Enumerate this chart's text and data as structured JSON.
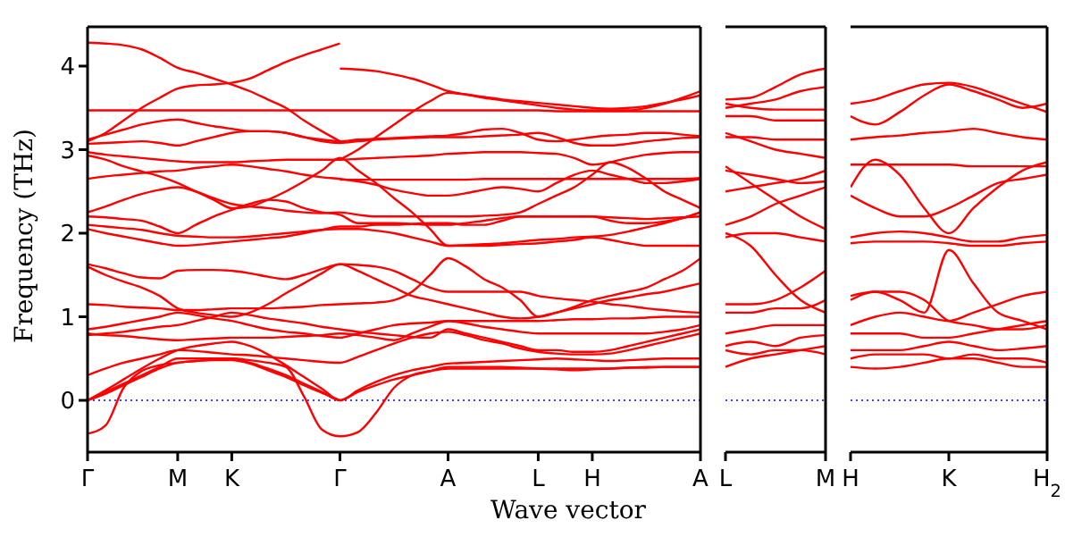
{
  "chart_data": [
    {
      "type": "line",
      "xlabel": "Wave vector",
      "ylabel": "Frequency (THz)",
      "categories": [
        "Γ",
        null,
        null,
        null,
        null,
        "M",
        null,
        null,
        "K",
        null,
        null,
        null,
        null,
        null,
        "Γ",
        null,
        null,
        null,
        null,
        null,
        "A",
        null,
        null,
        null,
        null,
        "L",
        null,
        null,
        "H",
        null,
        null,
        null,
        null,
        null,
        "A"
      ],
      "ylim": [
        -0.62,
        4.47
      ],
      "yticks": [
        0,
        1,
        2,
        3,
        4
      ],
      "ref_lines": [
        {
          "axis": "y",
          "value": 0,
          "color": "#0000ff",
          "line_style": "dotted"
        }
      ],
      "series": [
        {
          "color": "#ff0000",
          "values": [
            4.28,
            4.27,
            4.25,
            4.2,
            4.1,
            3.98,
            3.92,
            3.85,
            3.78,
            3.7,
            3.6,
            3.5,
            3.35,
            3.22,
            3.1,
            null,
            null,
            null,
            null,
            null,
            null,
            null,
            null,
            null,
            null,
            null,
            null,
            null,
            null,
            null,
            null,
            null,
            null,
            null,
            null
          ]
        },
        {
          "color": "#ff0000",
          "values": [
            3.1,
            3.2,
            3.35,
            3.5,
            3.62,
            3.73,
            3.77,
            3.78,
            3.8,
            3.85,
            3.95,
            4.05,
            4.13,
            4.2,
            4.27,
            null,
            null,
            null,
            null,
            null,
            null,
            null,
            null,
            null,
            null,
            null,
            null,
            null,
            null,
            null,
            null,
            null,
            null,
            null,
            null
          ]
        },
        {
          "color": "#ff0000",
          "values": [
            3.47,
            3.47,
            3.47,
            3.47,
            3.47,
            3.47,
            3.47,
            3.47,
            3.47,
            3.47,
            3.47,
            3.47,
            3.47,
            3.47,
            3.47,
            3.47,
            3.47,
            3.47,
            3.47,
            3.47,
            3.47,
            3.47,
            3.47,
            3.47,
            3.47,
            3.47,
            3.46,
            3.46,
            3.46,
            3.46,
            3.46,
            3.46,
            3.46,
            3.46,
            3.46
          ]
        },
        {
          "color": "#ff0000",
          "values": [
            3.12,
            3.18,
            3.24,
            3.3,
            3.34,
            3.36,
            3.32,
            3.28,
            3.25,
            3.22,
            3.22,
            3.2,
            3.15,
            3.12,
            3.1,
            3.12,
            3.13,
            3.14,
            3.15,
            3.16,
            3.17,
            3.2,
            3.24,
            3.25,
            3.2,
            3.12,
            3.1,
            3.12,
            3.15,
            3.17,
            3.18,
            3.2,
            3.2,
            3.18,
            3.16
          ]
        },
        {
          "color": "#ff0000",
          "values": [
            3.07,
            3.08,
            3.09,
            3.1,
            3.08,
            3.05,
            3.1,
            3.15,
            3.2,
            3.22,
            3.22,
            3.2,
            3.15,
            3.1,
            3.08,
            3.1,
            3.12,
            3.13,
            3.14,
            3.15,
            3.15,
            3.15,
            3.16,
            3.17,
            3.18,
            3.2,
            3.15,
            3.08,
            3.05,
            3.05,
            3.07,
            3.1,
            3.12,
            3.14,
            3.15
          ]
        },
        {
          "color": "#ff0000",
          "values": [
            2.97,
            2.94,
            2.92,
            2.9,
            2.88,
            2.86,
            2.85,
            2.85,
            2.85,
            2.86,
            2.87,
            2.88,
            2.88,
            2.88,
            2.88,
            2.89,
            2.9,
            2.91,
            2.92,
            2.93,
            2.95,
            2.96,
            2.97,
            2.97,
            2.97,
            2.96,
            2.95,
            2.9,
            2.82,
            2.85,
            2.9,
            2.94,
            2.96,
            2.97,
            2.97
          ]
        },
        {
          "color": "#ff0000",
          "values": [
            2.93,
            2.88,
            2.8,
            2.74,
            2.68,
            2.6,
            2.5,
            2.4,
            2.3,
            2.32,
            2.4,
            2.5,
            2.62,
            2.75,
            2.9,
            2.75,
            2.6,
            2.42,
            2.25,
            2.05,
            1.85,
            1.86,
            1.87,
            1.88,
            1.9,
            1.92,
            1.93,
            1.95,
            1.96,
            1.98,
            2.02,
            2.07,
            2.12,
            2.18,
            2.25
          ]
        },
        {
          "color": "#ff0000",
          "values": [
            2.65,
            2.68,
            2.7,
            2.72,
            2.74,
            2.75,
            2.78,
            2.8,
            2.82,
            2.8,
            2.77,
            2.74,
            2.7,
            2.67,
            2.65,
            2.62,
            2.58,
            2.52,
            2.48,
            2.45,
            2.45,
            2.48,
            2.52,
            2.55,
            2.53,
            2.5,
            2.6,
            2.7,
            2.75,
            2.7,
            2.65,
            2.6,
            2.6,
            2.62,
            2.65
          ]
        },
        {
          "color": "#ff0000",
          "values": [
            2.25,
            2.32,
            2.4,
            2.47,
            2.52,
            2.55,
            2.5,
            2.42,
            2.35,
            2.32,
            2.3,
            2.27,
            2.25,
            2.24,
            2.25,
            2.22,
            2.2,
            2.2,
            2.2,
            2.2,
            2.2,
            2.2,
            2.21,
            2.22,
            2.25,
            2.35,
            2.45,
            2.55,
            2.7,
            2.85,
            2.78,
            2.65,
            2.5,
            2.4,
            2.3
          ]
        },
        {
          "color": "#ff0000",
          "values": [
            2.2,
            2.19,
            2.17,
            2.15,
            2.08,
            2.0,
            2.1,
            2.2,
            2.28,
            2.35,
            2.4,
            2.38,
            2.3,
            2.25,
            2.22,
            2.12,
            2.12,
            2.12,
            2.11,
            2.1,
            2.1,
            2.12,
            2.15,
            2.18,
            2.2,
            2.2,
            2.2,
            2.2,
            2.2,
            2.19,
            2.18,
            2.17,
            2.18,
            2.19,
            2.2
          ]
        },
        {
          "color": "#ff0000",
          "values": [
            2.1,
            2.08,
            2.06,
            2.04,
            2.0,
            1.97,
            1.96,
            1.95,
            1.95,
            1.96,
            1.98,
            2.0,
            2.02,
            2.04,
            2.05,
            2.05,
            2.03,
            2.0,
            1.95,
            1.9,
            1.85,
            1.85,
            1.85,
            1.86,
            1.87,
            1.88,
            1.9,
            1.92,
            1.95,
            1.92,
            1.88,
            1.85,
            1.85,
            1.85,
            1.85
          ]
        },
        {
          "color": "#ff0000",
          "values": [
            2.05,
            2.0,
            1.96,
            1.92,
            1.88,
            1.85,
            1.86,
            1.88,
            1.9,
            1.92,
            1.94,
            1.96,
            2.0,
            2.04,
            2.08,
            2.08,
            2.1,
            2.1,
            2.11,
            2.12,
            2.12,
            2.1,
            2.1,
            2.15,
            2.2,
            2.2,
            2.2,
            2.2,
            2.2,
            2.15,
            2.12,
            2.12,
            2.14,
            2.18,
            2.25
          ]
        },
        {
          "color": "#ff0000",
          "values": [
            1.63,
            1.58,
            1.52,
            1.47,
            1.46,
            1.55,
            1.56,
            1.56,
            1.55,
            1.52,
            1.48,
            1.45,
            1.5,
            1.57,
            1.63,
            1.62,
            1.6,
            1.55,
            1.45,
            1.35,
            1.3,
            1.3,
            1.3,
            1.3,
            1.3,
            1.25,
            1.22,
            1.2,
            1.18,
            1.15,
            1.13,
            1.1,
            1.08,
            1.06,
            1.05
          ]
        },
        {
          "color": "#ff0000",
          "values": [
            1.6,
            1.5,
            1.42,
            1.35,
            1.25,
            1.1,
            1.05,
            1.02,
            1.0,
            1.05,
            1.15,
            1.28,
            1.4,
            1.52,
            1.63,
            1.55,
            1.45,
            1.35,
            1.25,
            1.2,
            1.15,
            1.1,
            1.05,
            1.0,
            0.98,
            1.0,
            1.05,
            1.1,
            1.15,
            1.2,
            1.23,
            1.27,
            1.3,
            1.35,
            1.4
          ]
        },
        {
          "color": "#ff0000",
          "values": [
            1.15,
            1.14,
            1.12,
            1.11,
            1.1,
            1.08,
            1.08,
            1.09,
            1.1,
            1.1,
            1.1,
            1.11,
            1.12,
            1.14,
            1.15,
            1.16,
            1.17,
            1.2,
            1.3,
            1.5,
            1.7,
            1.6,
            1.45,
            1.35,
            1.2,
            1.0,
            1.05,
            1.12,
            1.2,
            1.25,
            1.3,
            1.35,
            1.45,
            1.55,
            1.7
          ]
        },
        {
          "color": "#ff0000",
          "values": [
            0.85,
            0.88,
            0.92,
            0.96,
            1.0,
            1.05,
            1.02,
            0.98,
            0.95,
            0.9,
            0.85,
            0.82,
            0.8,
            0.77,
            0.75,
            0.8,
            0.85,
            0.9,
            0.92,
            0.93,
            0.95,
            0.95,
            0.95,
            0.95,
            0.95,
            0.95,
            0.96,
            0.97,
            0.97,
            0.98,
            0.98,
            0.99,
            1.0,
            1.0,
            1.0
          ]
        },
        {
          "color": "#ff0000",
          "values": [
            0.8,
            0.78,
            0.77,
            0.75,
            0.73,
            0.72,
            0.73,
            0.74,
            0.75,
            0.75,
            0.75,
            0.76,
            0.77,
            0.78,
            0.8,
            0.78,
            0.75,
            0.72,
            0.8,
            0.88,
            0.95,
            0.92,
            0.88,
            0.85,
            0.82,
            0.8,
            0.8,
            0.8,
            0.8,
            0.8,
            0.8,
            0.8,
            0.82,
            0.85,
            0.9
          ]
        },
        {
          "color": "#ff0000",
          "values": [
            0.78,
            0.8,
            0.82,
            0.85,
            0.88,
            0.9,
            0.95,
            1.0,
            1.05,
            1.02,
            0.98,
            0.95,
            0.92,
            0.88,
            0.85,
            0.82,
            0.8,
            0.78,
            0.76,
            0.75,
            0.85,
            0.8,
            0.75,
            0.7,
            0.65,
            0.6,
            0.6,
            0.58,
            0.58,
            0.6,
            0.65,
            0.7,
            0.75,
            0.8,
            0.85
          ]
        },
        {
          "color": "#ff0000",
          "values": [
            0.3,
            0.38,
            0.45,
            0.5,
            0.55,
            0.6,
            0.59,
            0.57,
            0.55,
            0.54,
            0.52,
            0.5,
            0.48,
            0.46,
            0.45,
            0.52,
            0.6,
            0.68,
            0.75,
            0.8,
            0.82,
            0.78,
            0.72,
            0.68,
            0.62,
            0.58,
            0.56,
            0.55,
            0.55,
            0.56,
            0.6,
            0.65,
            0.7,
            0.75,
            0.8
          ]
        },
        {
          "color": "#ff0000",
          "values": [
            0,
            0.12,
            0.25,
            0.38,
            0.5,
            0.6,
            0.65,
            0.68,
            0.7,
            0.65,
            0.55,
            0.42,
            0.28,
            0.14,
            0,
            0.12,
            0.22,
            0.3,
            0.36,
            0.4,
            0.44,
            0.45,
            0.46,
            0.47,
            0.48,
            0.49,
            0.5,
            0.49,
            0.48,
            0.47,
            0.48,
            0.49,
            0.5,
            0.5,
            0.5
          ]
        },
        {
          "color": "#ff0000",
          "values": [
            0,
            0.1,
            0.2,
            0.3,
            0.4,
            0.5,
            0.5,
            0.5,
            0.5,
            0.45,
            0.38,
            0.3,
            0.2,
            0.1,
            0,
            0.1,
            0.18,
            0.25,
            0.3,
            0.35,
            0.4,
            0.4,
            0.4,
            0.4,
            0.39,
            0.38,
            0.37,
            0.36,
            0.37,
            0.38,
            0.39,
            0.4,
            0.4,
            0.4,
            0.4
          ]
        },
        {
          "color": "#ff0000",
          "values": [
            0,
            0.08,
            0.18,
            0.28,
            0.38,
            0.45,
            0.47,
            0.48,
            0.48,
            0.44,
            0.36,
            0.28,
            0.18,
            0.09,
            0,
            null,
            null,
            null,
            null,
            null,
            null,
            null,
            null,
            null,
            null,
            null,
            null,
            null,
            null,
            null,
            null,
            null,
            null,
            null,
            null
          ]
        },
        {
          "color": "#ff0000",
          "values": [
            -0.4,
            -0.3,
            0.15,
            0.35,
            0.42,
            0.45,
            0.47,
            0.49,
            0.5,
            0.48,
            0.45,
            0.4,
            0.05,
            -0.35,
            -0.43,
            -0.38,
            -0.15,
            0.15,
            0.3,
            0.35,
            0.38,
            0.38,
            0.38,
            0.38,
            0.38,
            0.38,
            0.38,
            0.38,
            0.38,
            0.38,
            0.39,
            0.39,
            0.4,
            0.4,
            0.4
          ]
        },
        {
          "color": "#ff0000",
          "values": [
            null,
            null,
            null,
            null,
            null,
            null,
            null,
            null,
            null,
            null,
            null,
            null,
            null,
            null,
            3.97,
            3.96,
            3.94,
            3.9,
            3.85,
            3.78,
            3.7,
            3.66,
            3.62,
            3.59,
            3.56,
            3.53,
            3.5,
            3.48,
            3.47,
            3.47,
            3.47,
            3.5,
            3.55,
            3.62,
            3.7
          ]
        },
        {
          "color": "#ff0000",
          "values": [
            null,
            null,
            null,
            null,
            null,
            null,
            null,
            null,
            null,
            null,
            null,
            null,
            null,
            null,
            2.88,
            3.0,
            3.15,
            3.3,
            3.45,
            3.58,
            3.68,
            3.66,
            3.63,
            3.6,
            3.58,
            3.56,
            3.54,
            3.52,
            3.5,
            3.49,
            3.5,
            3.52,
            3.56,
            3.6,
            3.65
          ]
        },
        {
          "color": "#ff0000",
          "values": [
            null,
            null,
            null,
            null,
            null,
            null,
            null,
            null,
            null,
            null,
            null,
            null,
            null,
            null,
            2.64,
            2.64,
            2.64,
            2.64,
            2.64,
            2.64,
            2.64,
            2.64,
            2.65,
            2.65,
            2.65,
            2.65,
            2.65,
            2.65,
            2.65,
            2.65,
            2.65,
            2.65,
            2.65,
            2.65,
            2.66
          ]
        }
      ]
    },
    {
      "type": "line",
      "categories": [
        "L",
        null,
        null,
        null,
        "M"
      ],
      "ylim": [
        -0.62,
        4.47
      ],
      "yticks": [
        0,
        1,
        2,
        3,
        4
      ],
      "tick_labels": "x",
      "ref_lines": [
        {
          "axis": "y",
          "value": 0,
          "color": "#0000ff",
          "line_style": "dotted"
        }
      ],
      "series": [
        {
          "color": "#ff0000",
          "values": [
            3.6,
            3.62,
            3.75,
            3.9,
            3.97
          ]
        },
        {
          "color": "#ff0000",
          "values": [
            3.5,
            3.55,
            3.6,
            3.7,
            3.75
          ]
        },
        {
          "color": "#ff0000",
          "values": [
            3.55,
            3.5,
            3.48,
            3.48,
            3.48
          ]
        },
        {
          "color": "#ff0000",
          "values": [
            3.4,
            3.4,
            3.35,
            3.35,
            3.35
          ]
        },
        {
          "color": "#ff0000",
          "values": [
            3.15,
            3.15,
            3.12,
            3.12,
            3.12
          ]
        },
        {
          "color": "#ff0000",
          "values": [
            3.2,
            3.1,
            3.0,
            2.95,
            2.9
          ]
        },
        {
          "color": "#ff0000",
          "values": [
            2.75,
            2.7,
            2.65,
            2.6,
            2.62
          ]
        },
        {
          "color": "#ff0000",
          "values": [
            2.5,
            2.55,
            2.6,
            2.65,
            2.75
          ]
        },
        {
          "color": "#ff0000",
          "values": [
            2.8,
            2.6,
            2.4,
            2.2,
            2.05
          ]
        },
        {
          "color": "#ff0000",
          "values": [
            2.1,
            2.2,
            2.35,
            2.45,
            2.55
          ]
        },
        {
          "color": "#ff0000",
          "values": [
            1.95,
            2.0,
            2.0,
            1.95,
            1.9
          ]
        },
        {
          "color": "#ff0000",
          "values": [
            2.0,
            1.85,
            1.5,
            1.2,
            1.05
          ]
        },
        {
          "color": "#ff0000",
          "values": [
            1.15,
            1.15,
            1.2,
            1.35,
            1.55
          ]
        },
        {
          "color": "#ff0000",
          "values": [
            1.05,
            1.05,
            1.1,
            1.1,
            1.2
          ]
        },
        {
          "color": "#ff0000",
          "values": [
            0.8,
            0.85,
            0.9,
            0.9,
            0.9
          ]
        },
        {
          "color": "#ff0000",
          "values": [
            0.65,
            0.7,
            0.65,
            0.75,
            0.78
          ]
        },
        {
          "color": "#ff0000",
          "values": [
            0.6,
            0.55,
            0.6,
            0.6,
            0.55
          ]
        },
        {
          "color": "#ff0000",
          "values": [
            0.4,
            0.5,
            0.55,
            0.6,
            0.65
          ]
        }
      ]
    },
    {
      "type": "line",
      "categories": [
        "H",
        null,
        null,
        null,
        "K",
        null,
        null,
        null,
        "H$_{2}$"
      ],
      "ylim": [
        -0.62,
        4.47
      ],
      "yticks": [
        0,
        1,
        2,
        3,
        4
      ],
      "tick_labels": "x",
      "ref_lines": [
        {
          "axis": "y",
          "value": 0,
          "color": "#0000ff",
          "line_style": "dotted"
        }
      ],
      "series": [
        {
          "color": "#ff0000",
          "values": [
            3.55,
            3.6,
            3.7,
            3.78,
            3.8,
            3.75,
            3.65,
            3.55,
            3.45
          ]
        },
        {
          "color": "#ff0000",
          "values": [
            3.4,
            3.3,
            3.45,
            3.65,
            3.78,
            3.7,
            3.6,
            3.5,
            3.55
          ]
        },
        {
          "color": "#ff0000",
          "values": [
            3.12,
            3.15,
            3.17,
            3.2,
            3.22,
            3.25,
            3.2,
            3.15,
            3.12
          ]
        },
        {
          "color": "#ff0000",
          "values": [
            2.82,
            2.82,
            2.82,
            2.82,
            2.82,
            2.8,
            2.8,
            2.8,
            2.8
          ]
        },
        {
          "color": "#ff0000",
          "values": [
            2.55,
            2.88,
            2.7,
            2.3,
            2.0,
            2.3,
            2.55,
            2.75,
            2.85
          ]
        },
        {
          "color": "#ff0000",
          "values": [
            2.45,
            2.3,
            2.2,
            2.2,
            2.3,
            2.45,
            2.6,
            2.65,
            2.7
          ]
        },
        {
          "color": "#ff0000",
          "values": [
            1.95,
            2.0,
            2.02,
            2.0,
            1.95,
            1.9,
            1.9,
            1.95,
            1.98
          ]
        },
        {
          "color": "#ff0000",
          "values": [
            1.88,
            1.9,
            1.9,
            1.9,
            1.88,
            1.85,
            1.85,
            1.88,
            1.9
          ]
        },
        {
          "color": "#ff0000",
          "values": [
            1.25,
            1.3,
            1.2,
            1.05,
            1.8,
            1.4,
            1.05,
            0.95,
            0.85
          ]
        },
        {
          "color": "#ff0000",
          "values": [
            1.2,
            1.3,
            1.3,
            1.2,
            0.95,
            0.9,
            0.85,
            0.85,
            0.9
          ]
        },
        {
          "color": "#ff0000",
          "values": [
            0.9,
            1.0,
            1.05,
            1.0,
            0.95,
            1.05,
            1.15,
            1.25,
            1.3
          ]
        },
        {
          "color": "#ff0000",
          "values": [
            0.8,
            0.8,
            0.8,
            0.75,
            0.75,
            0.8,
            0.85,
            0.9,
            0.95
          ]
        },
        {
          "color": "#ff0000",
          "values": [
            0.6,
            0.6,
            0.6,
            0.65,
            0.7,
            0.65,
            0.6,
            0.62,
            0.65
          ]
        },
        {
          "color": "#ff0000",
          "values": [
            0.5,
            0.55,
            0.55,
            0.55,
            0.5,
            0.55,
            0.5,
            0.5,
            0.45
          ]
        },
        {
          "color": "#ff0000",
          "values": [
            0.4,
            0.38,
            0.4,
            0.45,
            0.5,
            0.5,
            0.45,
            0.4,
            0.4
          ]
        }
      ]
    }
  ]
}
